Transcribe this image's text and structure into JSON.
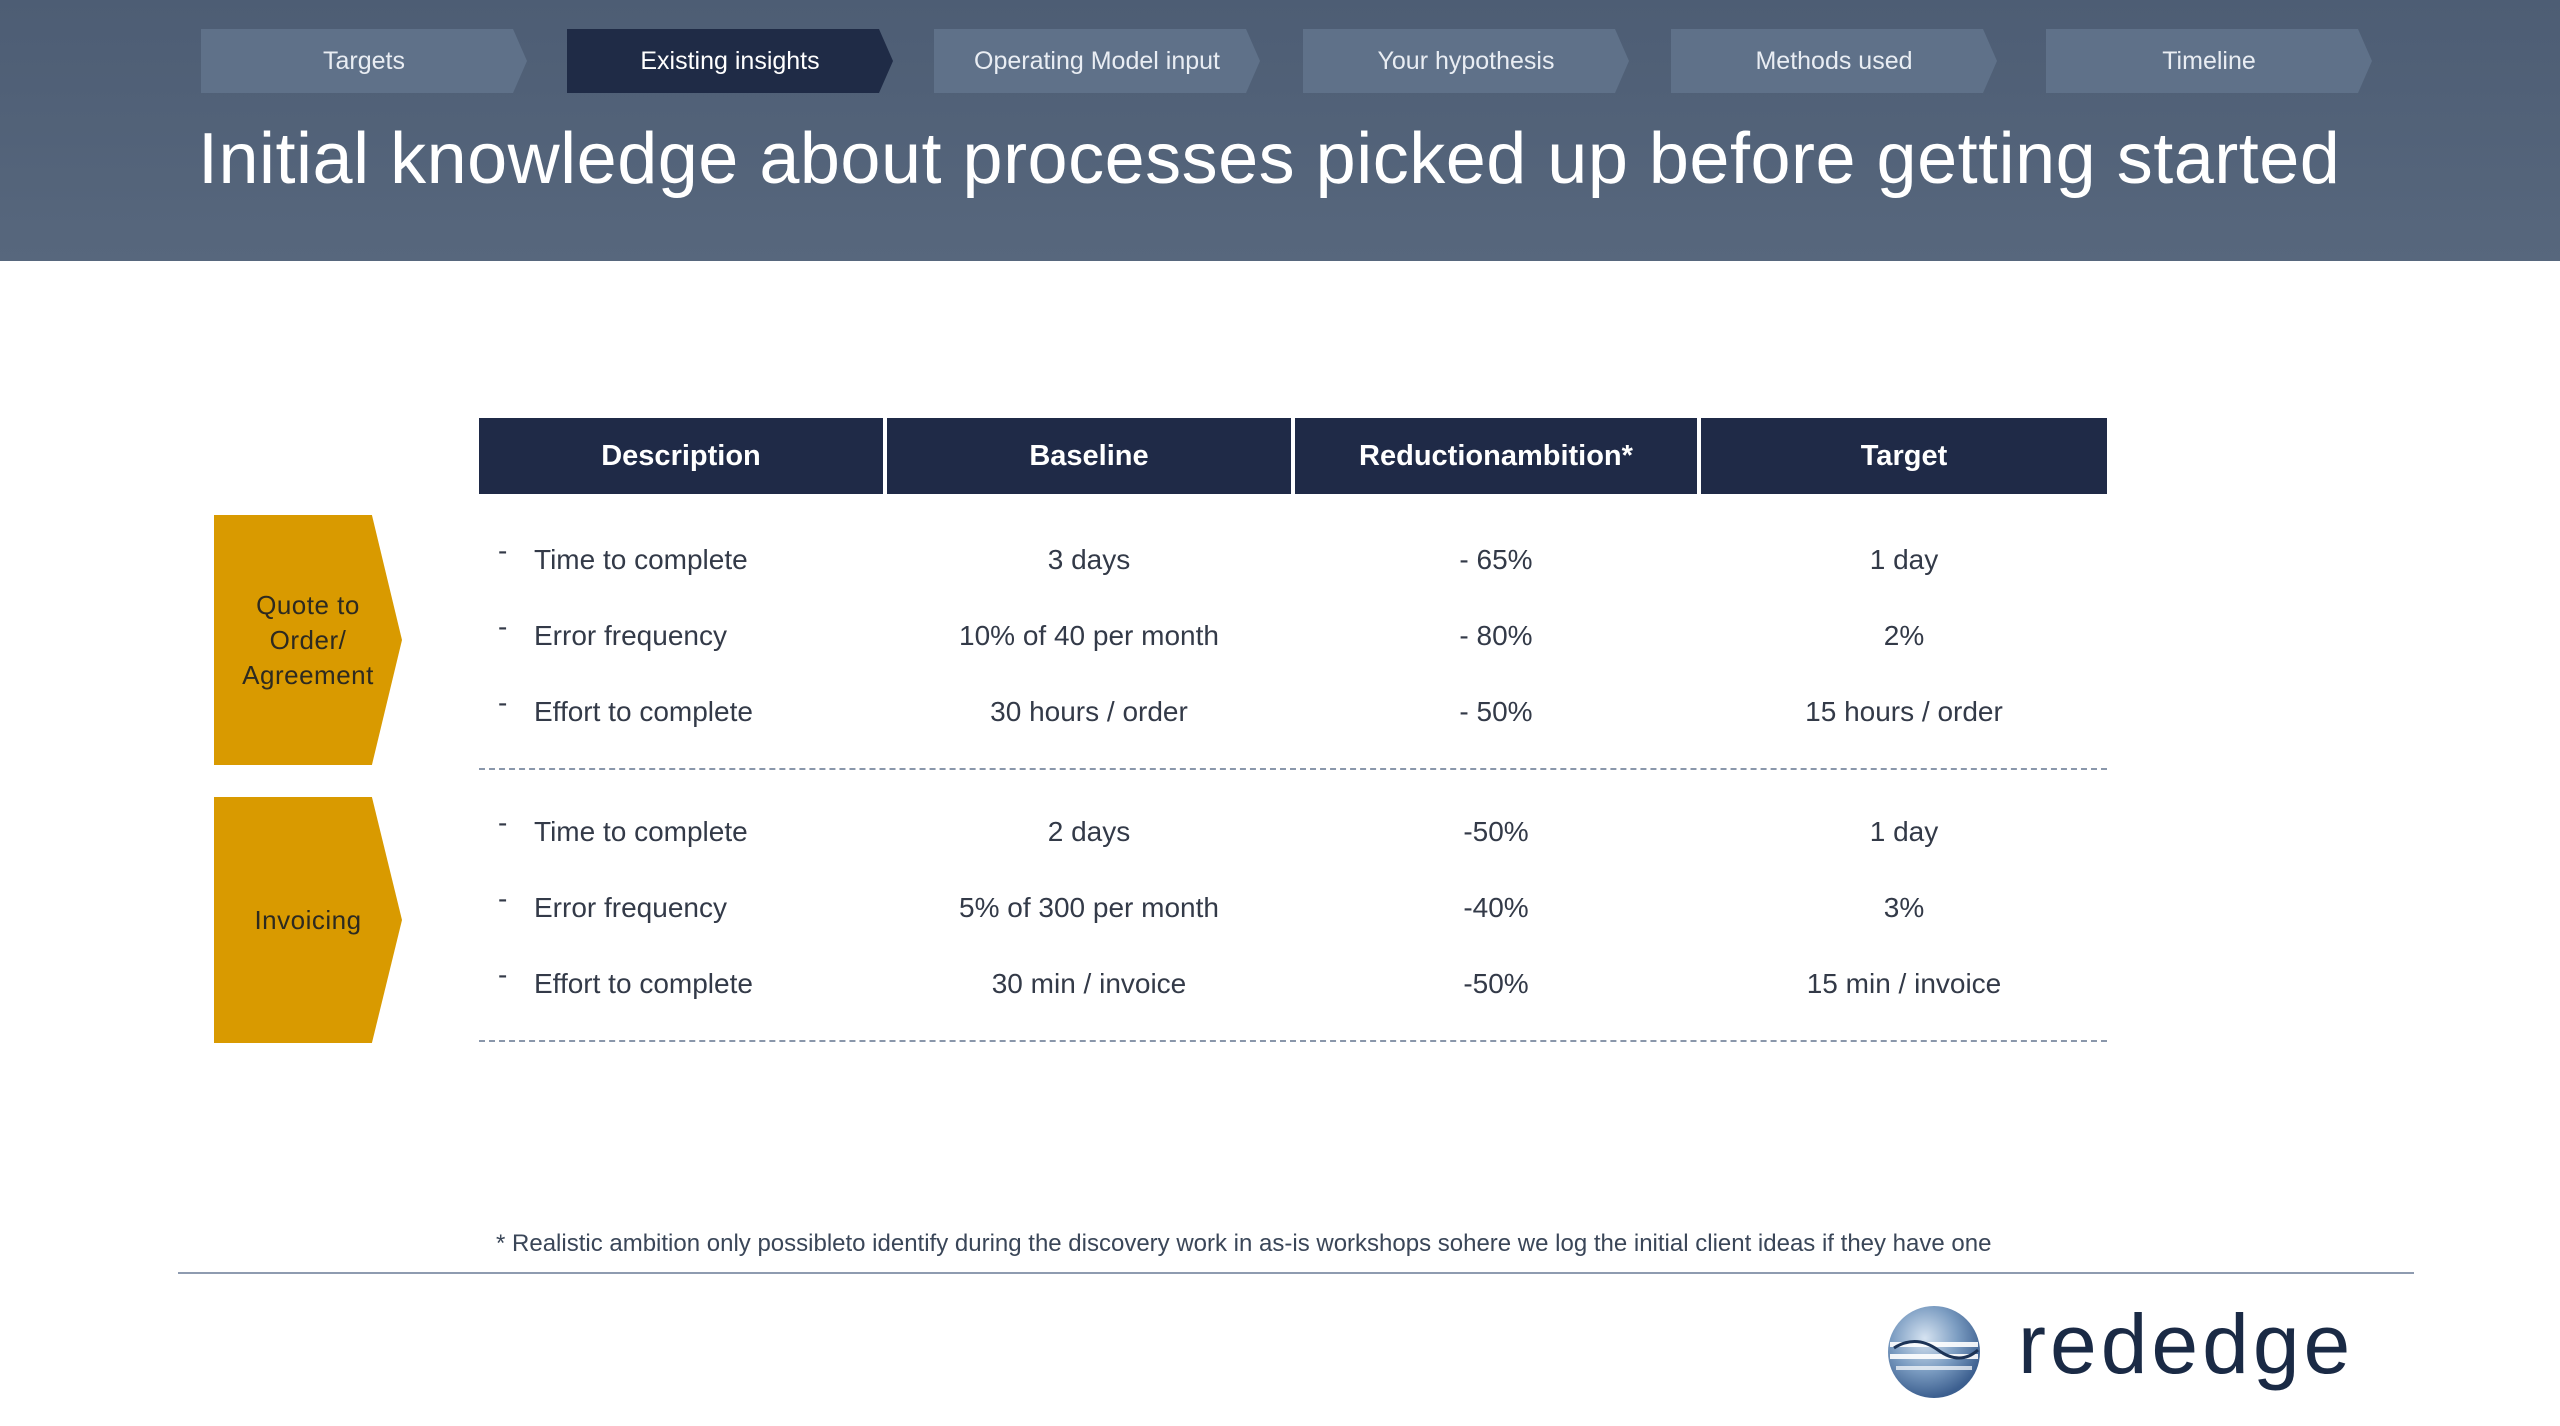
{
  "nav": {
    "steps": [
      {
        "label": "Targets",
        "active": false
      },
      {
        "label": "Existing insights",
        "active": true
      },
      {
        "label": "Operating Model input",
        "active": false
      },
      {
        "label": "Your hypothesis",
        "active": false
      },
      {
        "label": "Methods used",
        "active": false
      },
      {
        "label": "Timeline",
        "active": false
      }
    ]
  },
  "page": {
    "title": "Initial knowledge about processes picked up before getting started"
  },
  "table": {
    "headers": [
      "Description",
      "Baseline",
      "Reductionambition*",
      "Target"
    ],
    "groups": [
      {
        "label_lines": [
          "Quote to",
          "Order/",
          "Agreement"
        ],
        "rows": [
          {
            "dash": "-",
            "description": "Time to complete",
            "baseline": "3 days",
            "reduction": "- 65%",
            "target": "1 day"
          },
          {
            "dash": "-",
            "description": "Error frequency",
            "baseline": "10% of 40 per month",
            "reduction": "- 80%",
            "target": "2%"
          },
          {
            "dash": "-",
            "description": "Effort to complete",
            "baseline": "30 hours / order",
            "reduction": "- 50%",
            "target": "15 hours / order"
          }
        ]
      },
      {
        "label_lines": [
          "Invoicing"
        ],
        "rows": [
          {
            "dash": "-",
            "description": "Time to complete",
            "baseline": "2 days",
            "reduction": "-50%",
            "target": "1 day"
          },
          {
            "dash": "-",
            "description": "Error frequency",
            "baseline": "5% of 300 per month",
            "reduction": "-40%",
            "target": "3%"
          },
          {
            "dash": "-",
            "description": "Effort to complete",
            "baseline": "30 min / invoice",
            "reduction": "-50%",
            "target": "15 min / invoice"
          }
        ]
      }
    ]
  },
  "footnote": "* Realistic ambition only possibleto identify during the discovery work in as-is workshops sohere we log the initial client ideas if they have one",
  "logo": {
    "text": "rededge",
    "icon": "globe-logo-icon"
  },
  "colors": {
    "header_bg": "#52627a",
    "step_bg": "#5f7189",
    "step_active_bg": "#1f2b46",
    "table_header_bg": "#1f2a47",
    "group_chevron_bg": "#d99a00"
  }
}
